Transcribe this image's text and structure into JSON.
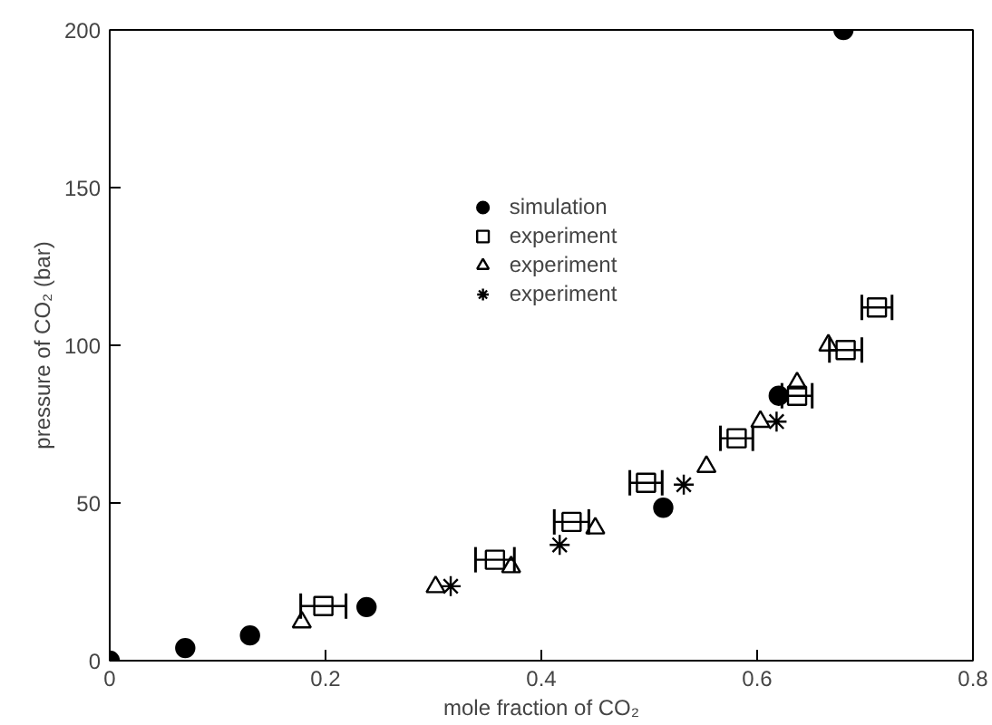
{
  "chart_data": {
    "type": "scatter",
    "xlabel": "mole fraction of CO₂",
    "ylabel": "pressure of CO₂ (bar)",
    "xlim": [
      0,
      0.8
    ],
    "ylim": [
      0,
      200
    ],
    "xticks": [
      0,
      0.2,
      0.4,
      0.6,
      0.8
    ],
    "yticks": [
      0,
      50,
      100,
      150,
      200
    ],
    "grid": false,
    "legend": "top",
    "series": [
      {
        "name": "simulation",
        "color": "#000000",
        "marker": "circle",
        "x": [
          0,
          0.07,
          0.13,
          0.238,
          0.513,
          0.62,
          0.68
        ],
        "values": [
          0,
          4,
          8,
          17,
          48.5,
          84,
          200
        ]
      },
      {
        "name": "experiment",
        "color": "#000000",
        "marker": "square",
        "x": [
          0.198,
          0.357,
          0.428,
          0.497,
          0.581,
          0.637,
          0.682,
          0.711
        ],
        "values": [
          17.3,
          32,
          44,
          56.4,
          70.5,
          84,
          98.5,
          112
        ],
        "xerrors": [
          0.021,
          0.018,
          0.016,
          0.015,
          0.015,
          0.014,
          0.015,
          0.014
        ]
      },
      {
        "name": "experiment",
        "color": "#000000",
        "marker": "triangle",
        "x": [
          0.178,
          0.302,
          0.372,
          0.45,
          0.553,
          0.603,
          0.637,
          0.666
        ],
        "values": [
          12.2,
          23.4,
          29.7,
          42,
          61.5,
          75.8,
          88,
          100
        ]
      },
      {
        "name": "experiment",
        "color": "#000000",
        "marker": "cross",
        "x": [
          0.316,
          0.417,
          0.532,
          0.618
        ],
        "values": [
          23.6,
          36.7,
          55.8,
          75.8
        ]
      }
    ]
  }
}
